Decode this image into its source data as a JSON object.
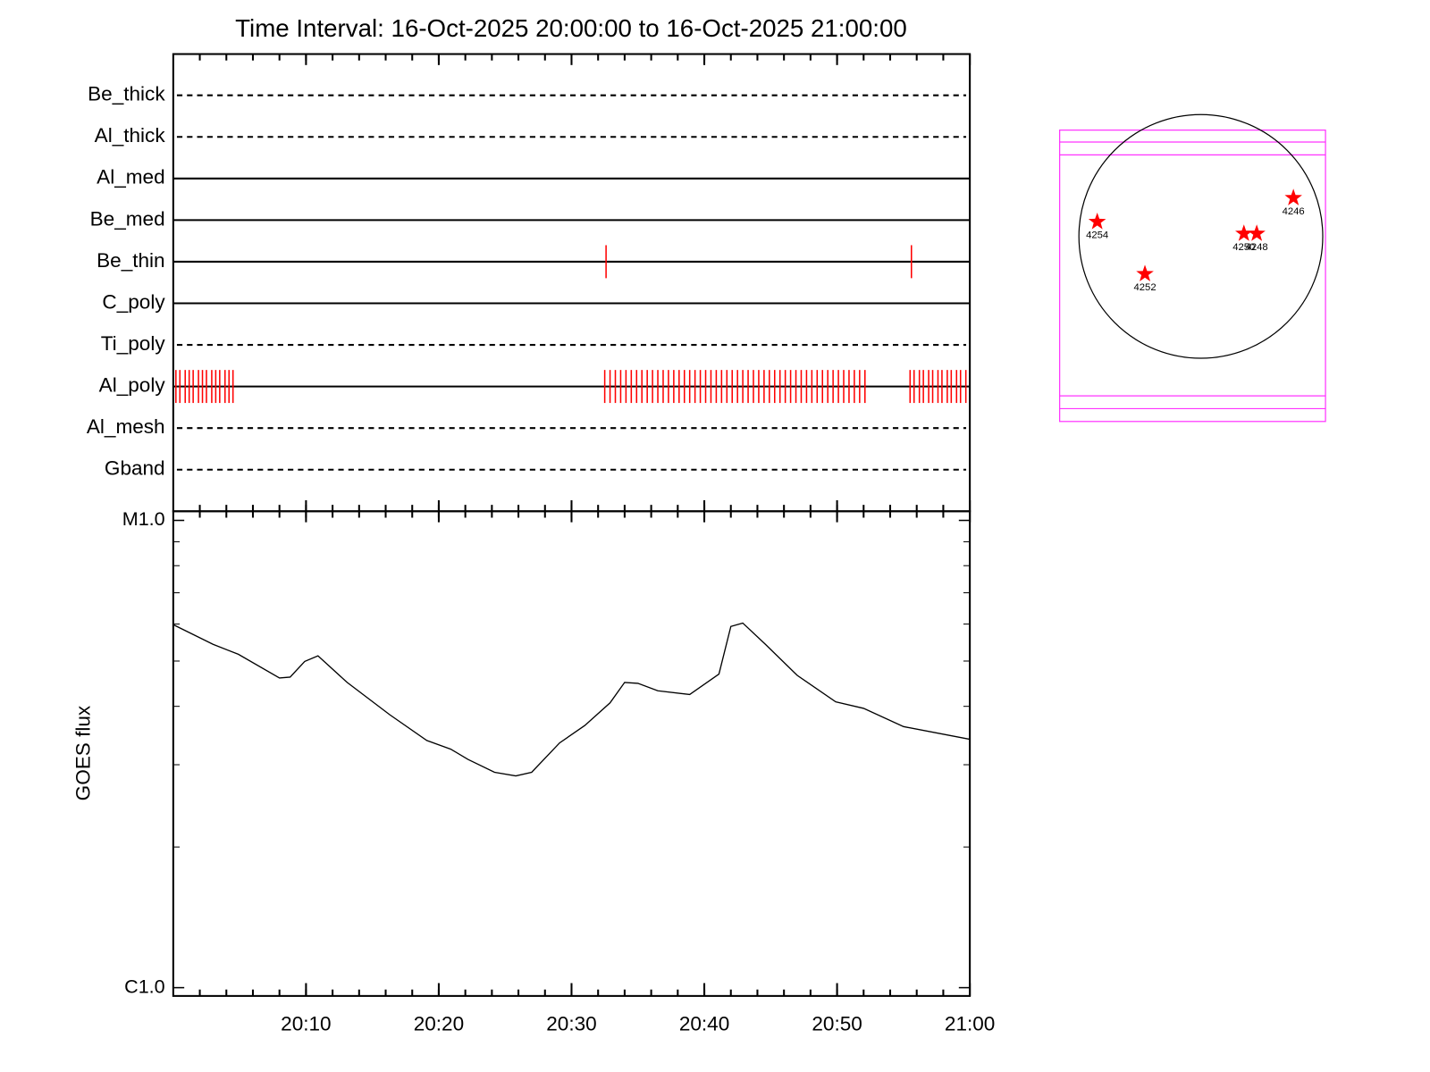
{
  "chart_data": [
    {
      "type": "event",
      "title": "Time Interval: 16-Oct-2025 20:00:00 to 16-Oct-2025 21:00:00",
      "xlim": [
        0,
        60
      ],
      "event_color": "#ff0000",
      "series": [
        {
          "name": "Be_thick",
          "style": "dashed",
          "events": []
        },
        {
          "name": "Al_thick",
          "style": "dashed",
          "events": []
        },
        {
          "name": "Al_med",
          "style": "solid",
          "events": []
        },
        {
          "name": "Be_med",
          "style": "solid",
          "events": []
        },
        {
          "name": "Be_thin",
          "style": "solid",
          "events": [
            32.6,
            55.6
          ]
        },
        {
          "name": "C_poly",
          "style": "solid",
          "events": []
        },
        {
          "name": "Ti_poly",
          "style": "dashed",
          "events": []
        },
        {
          "name": "Al_poly",
          "style": "solid",
          "events": [
            0.2,
            0.5,
            0.9,
            1.2,
            1.5,
            1.9,
            2.2,
            2.5,
            2.9,
            3.2,
            3.5,
            3.9,
            4.2,
            4.5,
            32.5,
            32.9,
            33.3,
            33.7,
            34.1,
            34.5,
            34.9,
            35.3,
            35.7,
            36.1,
            36.5,
            36.9,
            37.3,
            37.7,
            38.1,
            38.5,
            38.9,
            39.3,
            39.7,
            40.1,
            40.5,
            40.9,
            41.3,
            41.7,
            42.1,
            42.5,
            42.9,
            43.3,
            43.7,
            44.1,
            44.5,
            44.9,
            45.3,
            45.7,
            46.1,
            46.5,
            46.9,
            47.3,
            47.7,
            48.1,
            48.5,
            48.9,
            49.3,
            49.7,
            50.1,
            50.5,
            50.9,
            51.3,
            51.7,
            52.1,
            55.5,
            55.8,
            56.2,
            56.5,
            56.9,
            57.2,
            57.6,
            57.9,
            58.3,
            58.6,
            59.0,
            59.3,
            59.7
          ]
        },
        {
          "name": "Al_mesh",
          "style": "dashed",
          "events": []
        },
        {
          "name": "Gband",
          "style": "dashed",
          "events": []
        }
      ]
    },
    {
      "type": "line",
      "ylabel": "GOES flux",
      "color": "#000000",
      "log_y": true,
      "xlim": [
        0,
        60
      ],
      "xticks": [
        {
          "value": 10,
          "label": "20:10"
        },
        {
          "value": 20,
          "label": "20:20"
        },
        {
          "value": 30,
          "label": "20:30"
        },
        {
          "value": 40,
          "label": "20:40"
        },
        {
          "value": 50,
          "label": "20:50"
        },
        {
          "value": 60,
          "label": "21:00"
        }
      ],
      "ylim": [
        9.6e-07,
        1.046e-05
      ],
      "yticks": [
        {
          "value": 1e-06,
          "label": "C1.0"
        },
        {
          "value": 1e-05,
          "label": "M1.0"
        }
      ],
      "x": [
        0,
        3.0,
        4.9,
        8.0,
        8.8,
        9.9,
        10.9,
        13.1,
        16.3,
        19.1,
        20.9,
        22.2,
        24.2,
        25.8,
        27.0,
        29.1,
        31.0,
        32.9,
        34.0,
        35.0,
        36.5,
        38.9,
        41.1,
        42.0,
        42.9,
        44.6,
        47.0,
        49.9,
        52.0,
        55.0,
        60.0
      ],
      "y": [
        5.98e-06,
        5.43e-06,
        5.17e-06,
        4.6e-06,
        4.62e-06,
        4.99e-06,
        5.13e-06,
        4.5e-06,
        3.84e-06,
        3.38e-06,
        3.24e-06,
        3.08e-06,
        2.89e-06,
        2.84e-06,
        2.89e-06,
        3.34e-06,
        3.64e-06,
        4.07e-06,
        4.5e-06,
        4.48e-06,
        4.32e-06,
        4.24e-06,
        4.69e-06,
        5.93e-06,
        6.03e-06,
        5.43e-06,
        4.66e-06,
        4.09e-06,
        3.96e-06,
        3.62e-06,
        3.4e-06
      ]
    },
    {
      "type": "map",
      "disk_radius": 960,
      "color": "#ff0000",
      "regions": [
        {
          "label": "4254",
          "x": -816,
          "y": 115
        },
        {
          "label": "4252",
          "x": -440,
          "y": -296
        },
        {
          "label": "4250",
          "x": 339,
          "y": 22
        },
        {
          "label": "4248",
          "x": 440,
          "y": 22
        },
        {
          "label": "4246",
          "x": 729,
          "y": 303
        }
      ]
    }
  ]
}
